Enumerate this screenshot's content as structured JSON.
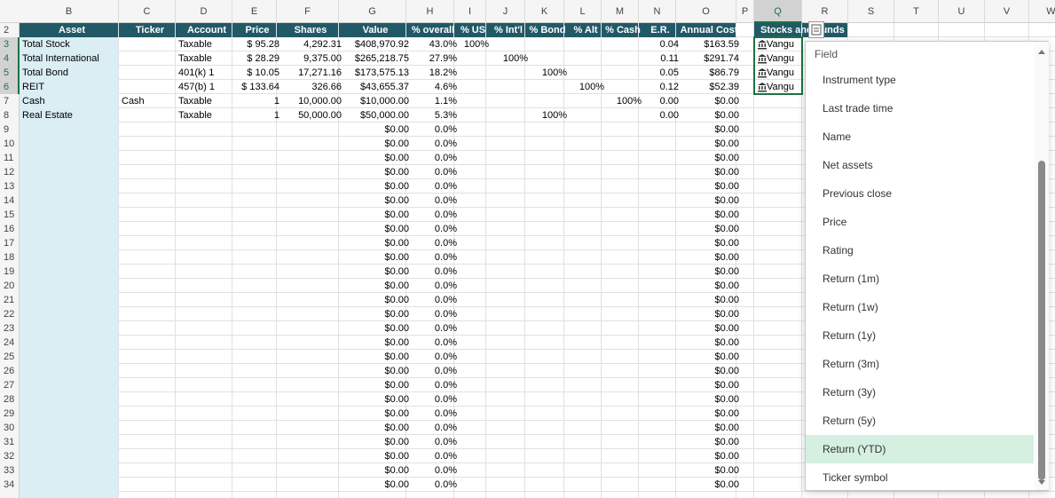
{
  "sheet": {
    "columns": [
      "B",
      "C",
      "D",
      "E",
      "F",
      "G",
      "H",
      "I",
      "J",
      "K",
      "L",
      "M",
      "N",
      "O",
      "P",
      "Q",
      "R",
      "S",
      "T",
      "U",
      "V",
      "W"
    ],
    "rows": [
      {
        "n": "2",
        "cells": [
          "Asset",
          "Ticker",
          "Account",
          "Price",
          "Shares",
          "Value",
          "% overall",
          "% US",
          "% Int'l",
          "% Bond",
          "% Alt",
          "% Cash",
          "E.R.",
          "Annual Cost"
        ]
      },
      {
        "n": "3",
        "cells": [
          "Total Stock",
          null,
          "Taxable",
          "$ 95.28",
          "4,292.31",
          "$408,970.92",
          "43.0%",
          "100%",
          null,
          null,
          null,
          null,
          "0.04",
          "$163.59"
        ]
      },
      {
        "n": "4",
        "cells": [
          "Total International",
          null,
          "Taxable",
          "$ 28.29",
          "9,375.00",
          "$265,218.75",
          "27.9%",
          null,
          "100%",
          null,
          null,
          null,
          "0.11",
          "$291.74"
        ]
      },
      {
        "n": "5",
        "cells": [
          "Total Bond",
          null,
          "401(k) 1",
          "$ 10.05",
          "17,271.16",
          "$173,575.13",
          "18.2%",
          null,
          null,
          "100%",
          null,
          null,
          "0.05",
          "$86.79"
        ]
      },
      {
        "n": "6",
        "cells": [
          "REIT",
          null,
          "457(b) 1",
          "$ 133.64",
          "326.66",
          "$43,655.37",
          "4.6%",
          null,
          null,
          null,
          "100%",
          null,
          "0.12",
          "$52.39"
        ]
      },
      {
        "n": "7",
        "cells": [
          "Cash",
          "Cash",
          "Taxable",
          "1",
          "10,000.00",
          "$10,000.00",
          "1.1%",
          null,
          null,
          null,
          null,
          "100%",
          "0.00",
          "$0.00"
        ]
      },
      {
        "n": "8",
        "cells": [
          "Real Estate",
          null,
          "Taxable",
          "1",
          "50,000.00",
          "$50,000.00",
          "5.3%",
          null,
          null,
          "100%",
          null,
          null,
          "0.00",
          "$0.00"
        ]
      },
      {
        "n": "9",
        "cells": [
          null,
          null,
          null,
          null,
          null,
          "$0.00",
          "0.0%",
          null,
          null,
          null,
          null,
          null,
          null,
          "$0.00"
        ]
      },
      {
        "n": "10",
        "cells": [
          null,
          null,
          null,
          null,
          null,
          "$0.00",
          "0.0%",
          null,
          null,
          null,
          null,
          null,
          null,
          "$0.00"
        ]
      },
      {
        "n": "11",
        "cells": [
          null,
          null,
          null,
          null,
          null,
          "$0.00",
          "0.0%",
          null,
          null,
          null,
          null,
          null,
          null,
          "$0.00"
        ]
      },
      {
        "n": "12",
        "cells": [
          null,
          null,
          null,
          null,
          null,
          "$0.00",
          "0.0%",
          null,
          null,
          null,
          null,
          null,
          null,
          "$0.00"
        ]
      },
      {
        "n": "13",
        "cells": [
          null,
          null,
          null,
          null,
          null,
          "$0.00",
          "0.0%",
          null,
          null,
          null,
          null,
          null,
          null,
          "$0.00"
        ]
      },
      {
        "n": "14",
        "cells": [
          null,
          null,
          null,
          null,
          null,
          "$0.00",
          "0.0%",
          null,
          null,
          null,
          null,
          null,
          null,
          "$0.00"
        ]
      },
      {
        "n": "15",
        "cells": [
          null,
          null,
          null,
          null,
          null,
          "$0.00",
          "0.0%",
          null,
          null,
          null,
          null,
          null,
          null,
          "$0.00"
        ]
      },
      {
        "n": "16",
        "cells": [
          null,
          null,
          null,
          null,
          null,
          "$0.00",
          "0.0%",
          null,
          null,
          null,
          null,
          null,
          null,
          "$0.00"
        ]
      },
      {
        "n": "17",
        "cells": [
          null,
          null,
          null,
          null,
          null,
          "$0.00",
          "0.0%",
          null,
          null,
          null,
          null,
          null,
          null,
          "$0.00"
        ]
      },
      {
        "n": "18",
        "cells": [
          null,
          null,
          null,
          null,
          null,
          "$0.00",
          "0.0%",
          null,
          null,
          null,
          null,
          null,
          null,
          "$0.00"
        ]
      },
      {
        "n": "19",
        "cells": [
          null,
          null,
          null,
          null,
          null,
          "$0.00",
          "0.0%",
          null,
          null,
          null,
          null,
          null,
          null,
          "$0.00"
        ]
      },
      {
        "n": "20",
        "cells": [
          null,
          null,
          null,
          null,
          null,
          "$0.00",
          "0.0%",
          null,
          null,
          null,
          null,
          null,
          null,
          "$0.00"
        ]
      },
      {
        "n": "21",
        "cells": [
          null,
          null,
          null,
          null,
          null,
          "$0.00",
          "0.0%",
          null,
          null,
          null,
          null,
          null,
          null,
          "$0.00"
        ]
      },
      {
        "n": "22",
        "cells": [
          null,
          null,
          null,
          null,
          null,
          "$0.00",
          "0.0%",
          null,
          null,
          null,
          null,
          null,
          null,
          "$0.00"
        ]
      },
      {
        "n": "23",
        "cells": [
          null,
          null,
          null,
          null,
          null,
          "$0.00",
          "0.0%",
          null,
          null,
          null,
          null,
          null,
          null,
          "$0.00"
        ]
      },
      {
        "n": "24",
        "cells": [
          null,
          null,
          null,
          null,
          null,
          "$0.00",
          "0.0%",
          null,
          null,
          null,
          null,
          null,
          null,
          "$0.00"
        ]
      },
      {
        "n": "25",
        "cells": [
          null,
          null,
          null,
          null,
          null,
          "$0.00",
          "0.0%",
          null,
          null,
          null,
          null,
          null,
          null,
          "$0.00"
        ]
      },
      {
        "n": "26",
        "cells": [
          null,
          null,
          null,
          null,
          null,
          "$0.00",
          "0.0%",
          null,
          null,
          null,
          null,
          null,
          null,
          "$0.00"
        ]
      },
      {
        "n": "27",
        "cells": [
          null,
          null,
          null,
          null,
          null,
          "$0.00",
          "0.0%",
          null,
          null,
          null,
          null,
          null,
          null,
          "$0.00"
        ]
      },
      {
        "n": "28",
        "cells": [
          null,
          null,
          null,
          null,
          null,
          "$0.00",
          "0.0%",
          null,
          null,
          null,
          null,
          null,
          null,
          "$0.00"
        ]
      },
      {
        "n": "29",
        "cells": [
          null,
          null,
          null,
          null,
          null,
          "$0.00",
          "0.0%",
          null,
          null,
          null,
          null,
          null,
          null,
          "$0.00"
        ]
      },
      {
        "n": "30",
        "cells": [
          null,
          null,
          null,
          null,
          null,
          "$0.00",
          "0.0%",
          null,
          null,
          null,
          null,
          null,
          null,
          "$0.00"
        ]
      },
      {
        "n": "31",
        "cells": [
          null,
          null,
          null,
          null,
          null,
          "$0.00",
          "0.0%",
          null,
          null,
          null,
          null,
          null,
          null,
          "$0.00"
        ]
      },
      {
        "n": "32",
        "cells": [
          null,
          null,
          null,
          null,
          null,
          "$0.00",
          "0.0%",
          null,
          null,
          null,
          null,
          null,
          null,
          "$0.00"
        ]
      },
      {
        "n": "33",
        "cells": [
          null,
          null,
          null,
          null,
          null,
          "$0.00",
          "0.0%",
          null,
          null,
          null,
          null,
          null,
          null,
          "$0.00"
        ]
      },
      {
        "n": "34",
        "cells": [
          null,
          null,
          null,
          null,
          null,
          "$0.00",
          "0.0%",
          null,
          null,
          null,
          null,
          null,
          null,
          "$0.00"
        ]
      }
    ],
    "stocks": {
      "header": "Stocks and Funds",
      "rows": [
        "Vangu",
        "Vangu",
        "Vangu",
        "Vangu"
      ]
    }
  },
  "dropdown": {
    "title": "Field",
    "highlighted": 13,
    "items": [
      "Instrument type",
      "Last trade time",
      "Name",
      "Net assets",
      "Previous close",
      "Price",
      "Rating",
      "Return (1m)",
      "Return (1w)",
      "Return (1y)",
      "Return (3m)",
      "Return (3y)",
      "Return (5y)",
      "Return (YTD)",
      "Ticker symbol"
    ]
  }
}
